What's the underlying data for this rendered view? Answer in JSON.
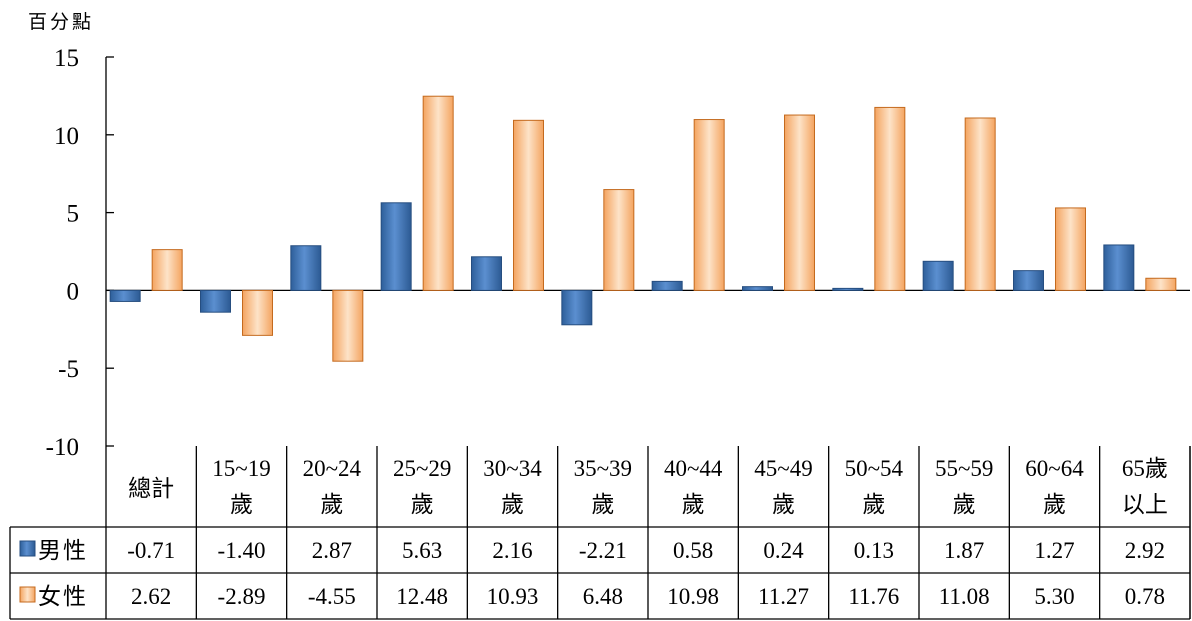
{
  "chart_data": {
    "type": "bar",
    "unit_label": "百分點",
    "categories": [
      [
        "總計"
      ],
      [
        "15~19",
        "歲"
      ],
      [
        "20~24",
        "歲"
      ],
      [
        "25~29",
        "歲"
      ],
      [
        "30~34",
        "歲"
      ],
      [
        "35~39",
        "歲"
      ],
      [
        "40~44",
        "歲"
      ],
      [
        "45~49",
        "歲"
      ],
      [
        "50~54",
        "歲"
      ],
      [
        "55~59",
        "歲"
      ],
      [
        "60~64",
        "歲"
      ],
      [
        "65歲",
        "以上"
      ]
    ],
    "series": [
      {
        "name": "男性",
        "color": "#4F81BD",
        "values": [
          -0.71,
          -1.4,
          2.87,
          5.63,
          2.16,
          -2.21,
          0.58,
          0.24,
          0.13,
          1.87,
          1.27,
          2.92
        ],
        "labels": [
          "-0.71",
          "-1.40",
          "2.87",
          "5.63",
          "2.16",
          "-2.21",
          "0.58",
          "0.24",
          "0.13",
          "1.87",
          "1.27",
          "2.92"
        ]
      },
      {
        "name": "女性",
        "color": "#F79646",
        "values": [
          2.62,
          -2.89,
          -4.55,
          12.48,
          10.93,
          6.48,
          10.98,
          11.27,
          11.76,
          11.08,
          5.3,
          0.78
        ],
        "labels": [
          "2.62",
          "-2.89",
          "-4.55",
          "12.48",
          "10.93",
          "6.48",
          "10.98",
          "11.27",
          "11.76",
          "11.08",
          "5.30",
          "0.78"
        ]
      }
    ],
    "yticks": [
      "15",
      "10",
      "5",
      "0",
      "-5",
      "-10"
    ],
    "ylim": [
      -10,
      15
    ],
    "grid": false,
    "legend": "data-table"
  }
}
